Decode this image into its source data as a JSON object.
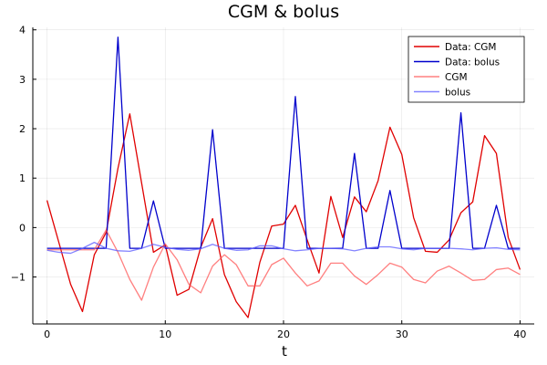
{
  "chart_data": {
    "type": "line",
    "title": "CGM & bolus",
    "xlabel": "t",
    "ylabel": "",
    "xlim": [
      -1.2,
      41.2
    ],
    "ylim": [
      -1.95,
      4.05
    ],
    "xticks": [
      0,
      10,
      20,
      30,
      40
    ],
    "yticks": [
      -1,
      0,
      1,
      2,
      3,
      4
    ],
    "grid": true,
    "legend_position": "top-right",
    "x": [
      0,
      1,
      2,
      3,
      4,
      5,
      6,
      7,
      8,
      9,
      10,
      11,
      12,
      13,
      14,
      15,
      16,
      17,
      18,
      19,
      20,
      21,
      22,
      23,
      24,
      25,
      26,
      27,
      28,
      29,
      30,
      31,
      32,
      33,
      34,
      35,
      36,
      37,
      38,
      39,
      40
    ],
    "series": [
      {
        "name": "Data: CGM",
        "color": "#e00000",
        "opacity": 1,
        "values": [
          0.55,
          -0.3,
          -1.15,
          -1.7,
          -0.55,
          -0.1,
          1.2,
          2.3,
          0.9,
          -0.5,
          -0.35,
          -1.37,
          -1.25,
          -0.4,
          0.18,
          -0.95,
          -1.5,
          -1.82,
          -0.7,
          0.03,
          0.07,
          0.45,
          -0.25,
          -0.92,
          0.63,
          -0.2,
          0.62,
          0.32,
          0.95,
          2.03,
          1.48,
          0.2,
          -0.48,
          -0.5,
          -0.25,
          0.3,
          0.52,
          1.86,
          1.5,
          -0.2,
          -0.85
        ]
      },
      {
        "name": "Data: bolus",
        "color": "#0000cc",
        "opacity": 1,
        "values": [
          -0.42,
          -0.42,
          -0.42,
          -0.42,
          -0.42,
          -0.42,
          3.85,
          -0.42,
          -0.42,
          0.54,
          -0.42,
          -0.42,
          -0.42,
          -0.42,
          1.98,
          -0.42,
          -0.42,
          -0.42,
          -0.42,
          -0.42,
          -0.42,
          2.65,
          -0.42,
          -0.42,
          -0.42,
          -0.42,
          1.5,
          -0.42,
          -0.42,
          0.75,
          -0.42,
          -0.42,
          -0.42,
          -0.42,
          -0.42,
          2.32,
          -0.42,
          -0.42,
          0.45,
          -0.42,
          -0.42
        ]
      },
      {
        "name": "CGM",
        "color": "#ff5555",
        "opacity": 0.75,
        "values": [
          -0.45,
          -0.45,
          -0.45,
          -0.45,
          -0.45,
          -0.05,
          -0.5,
          -1.05,
          -1.47,
          -0.8,
          -0.33,
          -0.65,
          -1.15,
          -1.32,
          -0.78,
          -0.55,
          -0.75,
          -1.18,
          -1.18,
          -0.75,
          -0.62,
          -0.92,
          -1.18,
          -1.08,
          -0.72,
          -0.72,
          -0.98,
          -1.15,
          -0.95,
          -0.72,
          -0.8,
          -1.05,
          -1.12,
          -0.88,
          -0.78,
          -0.92,
          -1.07,
          -1.05,
          -0.85,
          -0.82,
          -0.95
        ]
      },
      {
        "name": "bolus",
        "color": "#5a5aff",
        "opacity": 0.75,
        "values": [
          -0.46,
          -0.5,
          -0.52,
          -0.42,
          -0.3,
          -0.42,
          -0.47,
          -0.48,
          -0.42,
          -0.34,
          -0.4,
          -0.44,
          -0.46,
          -0.43,
          -0.34,
          -0.42,
          -0.46,
          -0.45,
          -0.37,
          -0.37,
          -0.43,
          -0.47,
          -0.45,
          -0.42,
          -0.42,
          -0.43,
          -0.47,
          -0.42,
          -0.39,
          -0.39,
          -0.43,
          -0.45,
          -0.42,
          -0.42,
          -0.42,
          -0.43,
          -0.45,
          -0.42,
          -0.41,
          -0.44,
          -0.45
        ]
      }
    ]
  }
}
